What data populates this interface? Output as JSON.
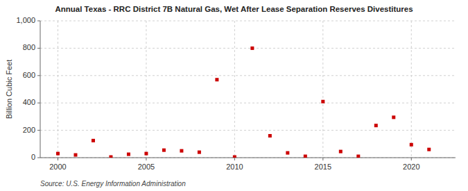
{
  "chart_data": {
    "type": "scatter",
    "title": "Annual Texas - RRC District 7B Natural Gas, Wet After Lease Separation Reserves Divestitures",
    "ylabel": "Billion Cubic Feet",
    "source": "Source: U.S. Energy Information Administration",
    "x": [
      2000,
      2001,
      2002,
      2003,
      2004,
      2005,
      2006,
      2007,
      2008,
      2009,
      2010,
      2011,
      2012,
      2013,
      2014,
      2015,
      2016,
      2017,
      2018,
      2019,
      2020,
      2021
    ],
    "values": [
      30,
      20,
      125,
      5,
      25,
      30,
      55,
      50,
      40,
      570,
      5,
      800,
      160,
      35,
      10,
      410,
      45,
      10,
      235,
      295,
      95,
      60
    ],
    "color": "#cc0000",
    "marker": "square",
    "xlim": [
      1999.0,
      2022.5
    ],
    "xticks": [
      2000,
      2005,
      2010,
      2015,
      2020
    ],
    "ylim": [
      0,
      1000
    ],
    "yticks": [
      0,
      200,
      400,
      600,
      800,
      {
        "value": 1000,
        "label": "1,000"
      }
    ],
    "grid": true
  }
}
